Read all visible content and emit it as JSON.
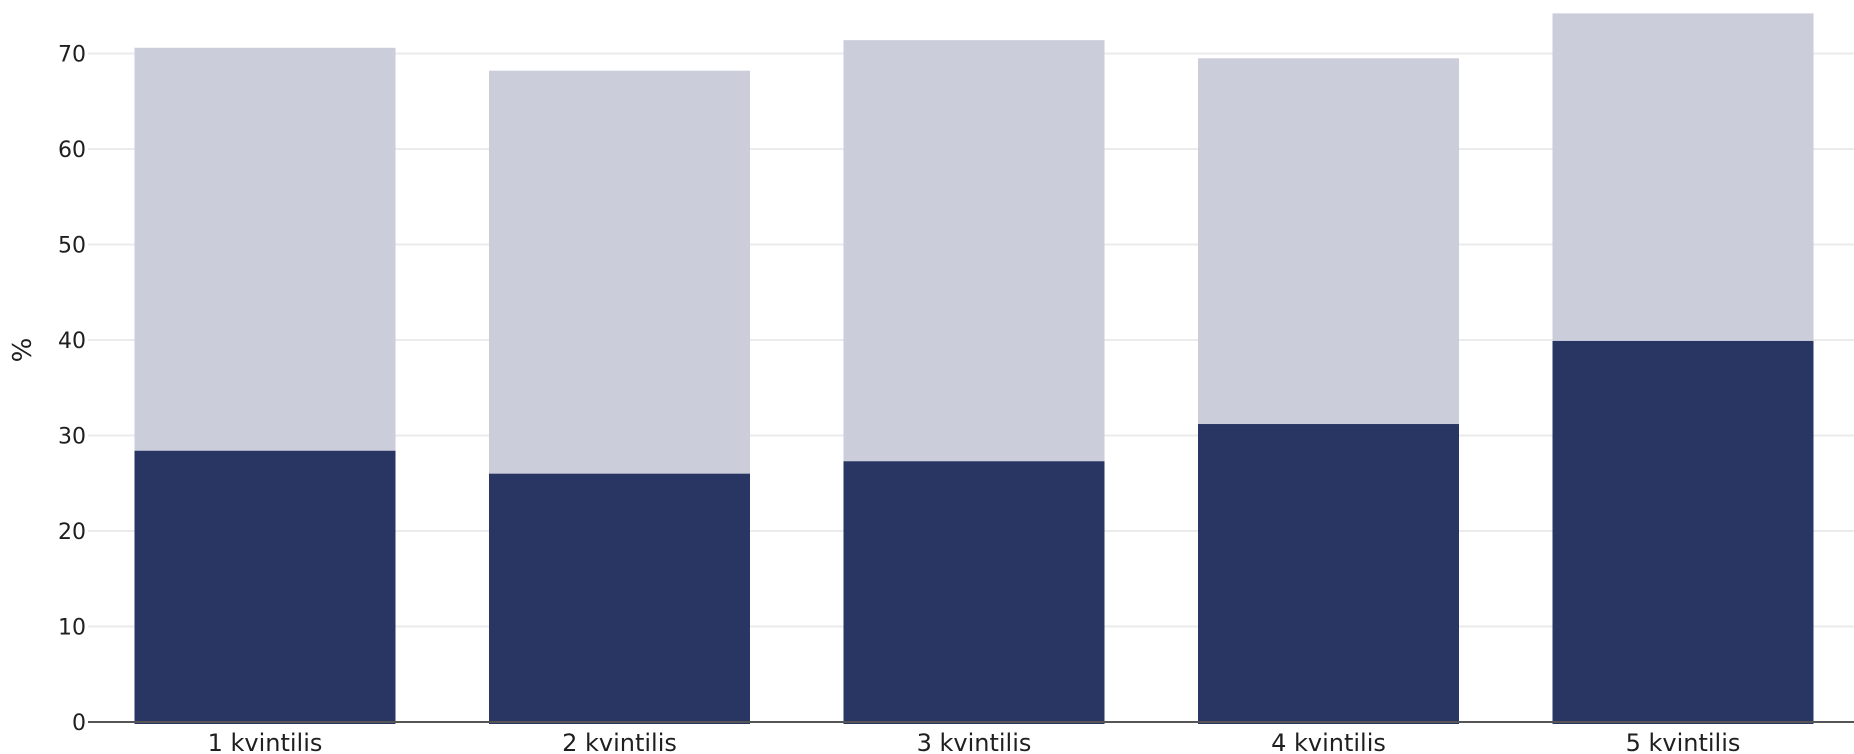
{
  "chart_data": {
    "type": "bar",
    "stacked": false,
    "overlay": true,
    "title": "",
    "xlabel": "",
    "ylabel": "%",
    "ylim": [
      0,
      74
    ],
    "yticks": [
      0,
      10,
      20,
      30,
      40,
      50,
      60,
      70
    ],
    "grid": true,
    "legend": "none",
    "categories": [
      "1 kvintilis",
      "2 kvintilis",
      "3 kvintilis",
      "4 kvintilis",
      "5 kvintilis"
    ],
    "series": [
      {
        "values": [
          70.6,
          68.2,
          71.4,
          69.5,
          74.2
        ],
        "color": "#cbcdda"
      },
      {
        "values": [
          28.4,
          26.0,
          27.3,
          31.2,
          39.9
        ],
        "color": "#293563"
      }
    ]
  },
  "colors": {
    "grid": "#ebebeb",
    "axis": "#555555",
    "text": "#1f1f1f"
  }
}
